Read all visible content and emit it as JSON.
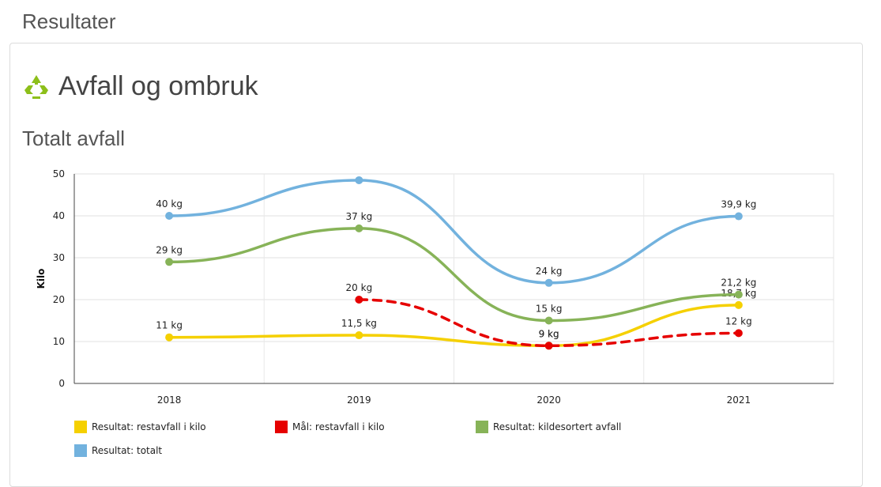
{
  "header": {
    "title": "Resultater"
  },
  "section": {
    "title": "Avfall og ombruk",
    "icon": "recycle-icon",
    "icon_color": "#8dbf1a"
  },
  "chart_title": "Totalt avfall",
  "chart_data": {
    "type": "line",
    "ylabel": "Kilo",
    "xlabel": "",
    "categories": [
      "2018",
      "2019",
      "2020",
      "2021"
    ],
    "ylim": [
      0,
      50
    ],
    "yticks": [
      0,
      10,
      20,
      30,
      40,
      50
    ],
    "grid": true,
    "legend_position": "bottom",
    "series": [
      {
        "name": "Resultat: restavfall i kilo",
        "color": "#f5d000",
        "style": "solid",
        "values": [
          11,
          11.5,
          9,
          18.7
        ],
        "labels": [
          "11 kg",
          "11,5 kg",
          "9 kg",
          "18,7 kg"
        ]
      },
      {
        "name": "Mål: restavfall i kilo",
        "color": "#e60000",
        "style": "dashed",
        "values": [
          null,
          20,
          9,
          12
        ],
        "labels": [
          "",
          "20 kg",
          "9 kg",
          "12 kg"
        ]
      },
      {
        "name": "Resultat: kildesortert avfall",
        "color": "#87b358",
        "style": "solid",
        "values": [
          29,
          37,
          15,
          21.2
        ],
        "labels": [
          "29 kg",
          "37 kg",
          "15 kg",
          "21,2 kg"
        ]
      },
      {
        "name": "Resultat: totalt",
        "color": "#72b2de",
        "style": "solid",
        "values": [
          40,
          48.5,
          24,
          39.9
        ],
        "labels": [
          "40 kg",
          "",
          "24 kg",
          "39,9 kg"
        ]
      }
    ]
  }
}
